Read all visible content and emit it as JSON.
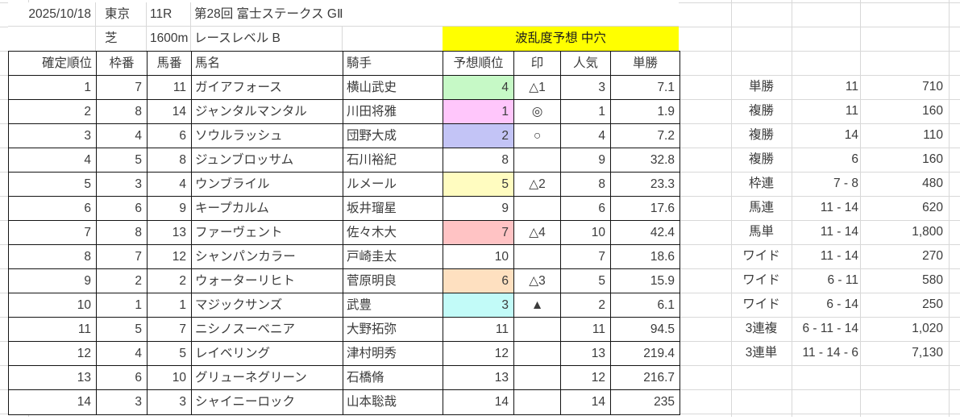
{
  "info": {
    "date": "2025/10/18",
    "track": "東京",
    "race_number": "11R",
    "race_title": "第28回 富士ステークス GⅡ",
    "surface": "芝",
    "distance": "1600m",
    "race_level": "レースレベル B",
    "banner_label": "波乱度予想 中穴"
  },
  "results": {
    "headers": {
      "finish": "確定順位",
      "frame": "枠番",
      "horse_no": "馬番",
      "horse": "馬名",
      "jockey": "騎手",
      "predicted": "予想順位",
      "mark": "印",
      "popularity": "人気",
      "odds": "単勝"
    },
    "rows": [
      {
        "finish": "1",
        "frame": "7",
        "horse_no": "11",
        "horse": "ガイアフォース",
        "jockey": "横山武史",
        "predicted": "4",
        "mark": "△1",
        "popularity": "3",
        "odds": "7.1",
        "predicted_bg": "#c6f9c6"
      },
      {
        "finish": "2",
        "frame": "8",
        "horse_no": "14",
        "horse": "ジャンタルマンタル",
        "jockey": "川田将雅",
        "predicted": "1",
        "mark": "◎",
        "popularity": "1",
        "odds": "1.9",
        "predicted_bg": "#ffc6fb"
      },
      {
        "finish": "3",
        "frame": "4",
        "horse_no": "6",
        "horse": "ソウルラッシュ",
        "jockey": "団野大成",
        "predicted": "2",
        "mark": "○",
        "popularity": "4",
        "odds": "7.2",
        "predicted_bg": "#c3c4f6"
      },
      {
        "finish": "4",
        "frame": "5",
        "horse_no": "8",
        "horse": "ジュンブロッサム",
        "jockey": "石川裕紀",
        "predicted": "8",
        "mark": "",
        "popularity": "9",
        "odds": "32.8",
        "predicted_bg": ""
      },
      {
        "finish": "5",
        "frame": "3",
        "horse_no": "4",
        "horse": "ウンブライル",
        "jockey": "ルメール",
        "predicted": "5",
        "mark": "△2",
        "popularity": "8",
        "odds": "23.3",
        "predicted_bg": "#fffcc0"
      },
      {
        "finish": "6",
        "frame": "6",
        "horse_no": "9",
        "horse": "キープカルム",
        "jockey": "坂井瑠星",
        "predicted": "9",
        "mark": "",
        "popularity": "6",
        "odds": "17.6",
        "predicted_bg": ""
      },
      {
        "finish": "7",
        "frame": "8",
        "horse_no": "13",
        "horse": "ファーヴェント",
        "jockey": "佐々木大",
        "predicted": "7",
        "mark": "△4",
        "popularity": "10",
        "odds": "42.4",
        "predicted_bg": "#ffc3c4"
      },
      {
        "finish": "8",
        "frame": "7",
        "horse_no": "12",
        "horse": "シャンパンカラー",
        "jockey": "戸崎圭太",
        "predicted": "10",
        "mark": "",
        "popularity": "7",
        "odds": "18.6",
        "predicted_bg": ""
      },
      {
        "finish": "9",
        "frame": "2",
        "horse_no": "2",
        "horse": "ウォーターリヒト",
        "jockey": "菅原明良",
        "predicted": "6",
        "mark": "△3",
        "popularity": "5",
        "odds": "15.9",
        "predicted_bg": "#fee0c0"
      },
      {
        "finish": "10",
        "frame": "1",
        "horse_no": "1",
        "horse": "マジックサンズ",
        "jockey": "武豊",
        "predicted": "3",
        "mark": "▲",
        "popularity": "2",
        "odds": "6.1",
        "predicted_bg": "#c2fbf8"
      },
      {
        "finish": "11",
        "frame": "5",
        "horse_no": "7",
        "horse": "ニシノスーベニア",
        "jockey": "大野拓弥",
        "predicted": "11",
        "mark": "",
        "popularity": "11",
        "odds": "94.5",
        "predicted_bg": ""
      },
      {
        "finish": "12",
        "frame": "4",
        "horse_no": "5",
        "horse": "レイベリング",
        "jockey": "津村明秀",
        "predicted": "12",
        "mark": "",
        "popularity": "13",
        "odds": "219.4",
        "predicted_bg": ""
      },
      {
        "finish": "13",
        "frame": "6",
        "horse_no": "10",
        "horse": "グリューネグリーン",
        "jockey": "石橋脩",
        "predicted": "13",
        "mark": "",
        "popularity": "12",
        "odds": "216.7",
        "predicted_bg": ""
      },
      {
        "finish": "14",
        "frame": "3",
        "horse_no": "3",
        "horse": "シャイニーロック",
        "jockey": "山本聡哉",
        "predicted": "14",
        "mark": "",
        "popularity": "14",
        "odds": "235",
        "predicted_bg": ""
      }
    ]
  },
  "payouts": {
    "rows": [
      {
        "type": "単勝",
        "combination": "11",
        "amount": "710"
      },
      {
        "type": "複勝",
        "combination": "11",
        "amount": "160"
      },
      {
        "type": "複勝",
        "combination": "14",
        "amount": "110"
      },
      {
        "type": "複勝",
        "combination": "6",
        "amount": "160"
      },
      {
        "type": "枠連",
        "combination": "7 - 8",
        "amount": "480"
      },
      {
        "type": "馬連",
        "combination": "11 - 14",
        "amount": "620"
      },
      {
        "type": "馬単",
        "combination": "11 - 14",
        "amount": "1,800"
      },
      {
        "type": "ワイド",
        "combination": "11 - 14",
        "amount": "270"
      },
      {
        "type": "ワイド",
        "combination": "6 - 11",
        "amount": "580"
      },
      {
        "type": "ワイド",
        "combination": "6 - 14",
        "amount": "250"
      },
      {
        "type": "3連複",
        "combination": "6 - 11 - 14",
        "amount": "1,020"
      },
      {
        "type": "3連単",
        "combination": "11 - 14 - 6",
        "amount": "7,130"
      }
    ]
  },
  "colors": {
    "banner_bg": "#ffff00",
    "gridline": "#d8d8d8",
    "table_border": "#141414",
    "text": "#3b3b3b"
  }
}
